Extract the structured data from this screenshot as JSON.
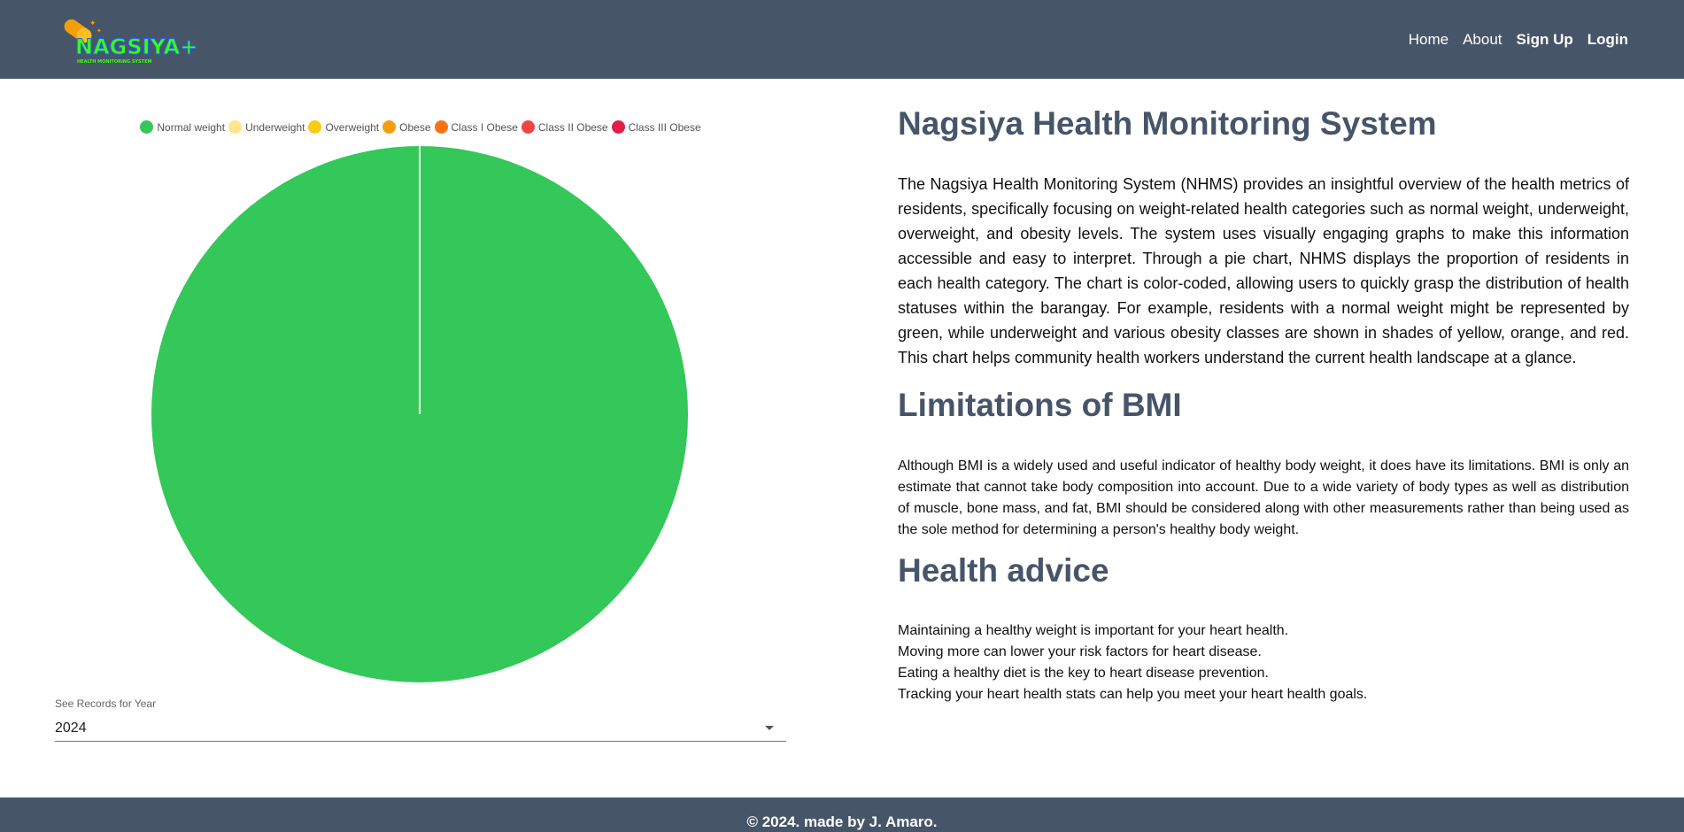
{
  "navbar": {
    "logo_text": "NAGSIYA+",
    "logo_subtext": "HEALTH MONITORING SYSTEM",
    "links": [
      "Home",
      "About",
      "Sign Up",
      "Login"
    ]
  },
  "chart_data": {
    "type": "pie",
    "categories": [
      "Normal weight",
      "Underweight",
      "Overweight",
      "Obese",
      "Class I Obese",
      "Class II Obese",
      "Class III Obese"
    ],
    "values": [
      100,
      0,
      0,
      0,
      0,
      0,
      0
    ],
    "colors": [
      "#34c759",
      "#fde68a",
      "#facc15",
      "#f59e0b",
      "#f97316",
      "#ef4444",
      "#e11d48"
    ],
    "legend_position": "top"
  },
  "year_select": {
    "label": "See Records for Year",
    "value": "2024"
  },
  "content": {
    "title": "Nagsiya Health Monitoring System",
    "intro": "The Nagsiya Health Monitoring System (NHMS) provides an insightful overview of the health metrics of residents, specifically focusing on weight-related health categories such as normal weight, underweight, overweight, and obesity levels. The system uses visually engaging graphs to make this information accessible and easy to interpret. Through a pie chart, NHMS displays the proportion of residents in each health category. The chart is color-coded, allowing users to quickly grasp the distribution of health statuses within the barangay. For example, residents with a normal weight might be represented by green, while underweight and various obesity classes are shown in shades of yellow, orange, and red. This chart helps community health workers understand the current health landscape at a glance.",
    "limitations_heading": "Limitations of BMI",
    "limitations_text": "Although BMI is a widely used and useful indicator of healthy body weight, it does have its limitations. BMI is only an estimate that cannot take body composition into account. Due to a wide variety of body types as well as distribution of muscle, bone mass, and fat, BMI should be considered along with other measurements rather than being used as the sole method for determining a person's healthy body weight.",
    "advice_heading": "Health advice",
    "advice_lines": [
      "Maintaining a healthy weight is important for your heart health.",
      "Moving more can lower your risk factors for heart disease.",
      "Eating a healthy diet is the key to heart disease prevention.",
      "Tracking your heart health stats can help you meet your heart health goals."
    ]
  },
  "footer": {
    "text": "© 2024. made by J. Amaro."
  }
}
